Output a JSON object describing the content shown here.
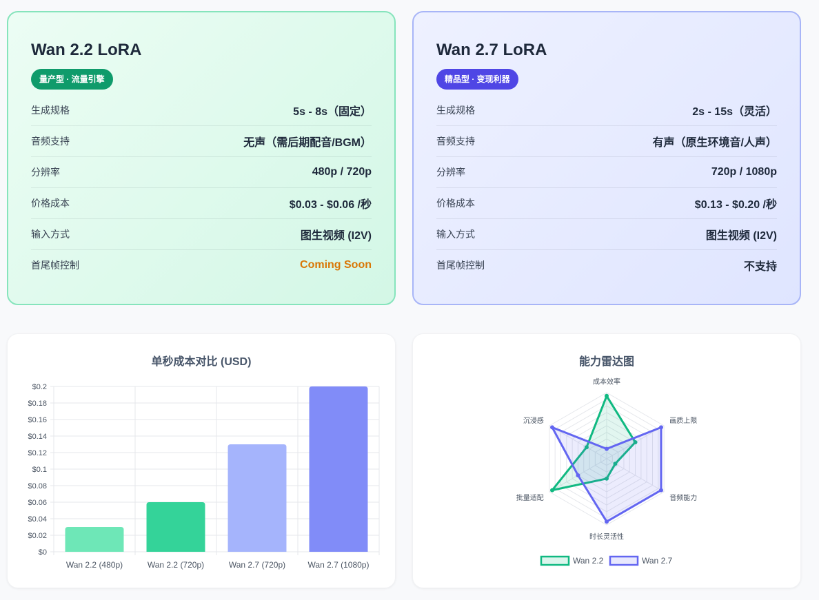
{
  "cards": [
    {
      "title": "Wan 2.2 LoRA",
      "badge": "量产型 · 流量引擎",
      "rows": [
        {
          "label": "生成规格",
          "value": "5s - 8s（固定）"
        },
        {
          "label": "音频支持",
          "value": "无声（需后期配音/BGM）"
        },
        {
          "label": "分辨率",
          "value": "480p / 720p"
        },
        {
          "label": "价格成本",
          "value": "$0.03 - $0.06 /秒"
        },
        {
          "label": "输入方式",
          "value": "图生视频 (I2V)"
        },
        {
          "label": "首尾帧控制",
          "value": "Coming Soon"
        }
      ]
    },
    {
      "title": "Wan 2.7 LoRA",
      "badge": "精品型 · 变现利器",
      "rows": [
        {
          "label": "生成规格",
          "value": "2s - 15s（灵活）"
        },
        {
          "label": "音频支持",
          "value": "有声（原生环境音/人声）"
        },
        {
          "label": "分辨率",
          "value": "720p / 1080p"
        },
        {
          "label": "价格成本",
          "value": "$0.13 - $0.20 /秒"
        },
        {
          "label": "输入方式",
          "value": "图生视频 (I2V)"
        },
        {
          "label": "首尾帧控制",
          "value": "不支持"
        }
      ]
    }
  ],
  "chart_data": [
    {
      "type": "bar",
      "title": "单秒成本对比 (USD)",
      "categories": [
        "Wan 2.2 (480p)",
        "Wan 2.2 (720p)",
        "Wan 2.7 (720p)",
        "Wan 2.7 (1080p)"
      ],
      "values": [
        0.03,
        0.06,
        0.13,
        0.2
      ],
      "colors": [
        "#6ee7b7",
        "#34d399",
        "#a5b4fc",
        "#818cf8"
      ],
      "ylim": [
        0,
        0.2
      ],
      "yticks": [
        "$0",
        "$0.02",
        "$0.04",
        "$0.06",
        "$0.08",
        "$0.1",
        "$0.12",
        "$0.14",
        "$0.16",
        "$0.18",
        "$0.2"
      ],
      "grid": true
    },
    {
      "type": "radar",
      "title": "能力雷达图",
      "axes": [
        "成本效率",
        "画质上限",
        "音频能力",
        "时长灵活性",
        "批量适配",
        "沉浸感"
      ],
      "max": 10,
      "series": [
        {
          "name": "Wan 2.2",
          "values": [
            9.5,
            5,
            1.5,
            3,
            9.5,
            3.5
          ],
          "color": "#10b981"
        },
        {
          "name": "Wan 2.7",
          "values": [
            1.5,
            9.5,
            9.5,
            9.5,
            5,
            9.5
          ],
          "color": "#6366f1"
        }
      ],
      "legend": "bottom"
    }
  ]
}
